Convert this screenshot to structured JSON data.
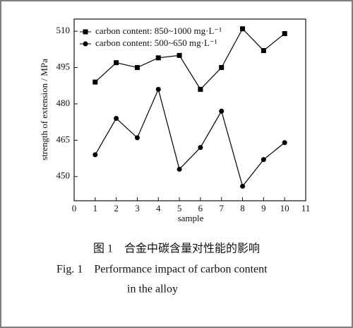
{
  "chart_data": {
    "type": "line",
    "x": [
      1,
      2,
      3,
      4,
      5,
      6,
      7,
      8,
      9,
      10
    ],
    "series": [
      {
        "name": "carbon content: 850~1000 mg·L⁻¹",
        "color": "#000000",
        "marker": "square",
        "values": [
          489,
          497,
          495,
          499,
          500,
          486,
          495,
          511,
          502,
          509
        ]
      },
      {
        "name": "carbon content: 500~650 mg·L⁻¹",
        "color": "#000000",
        "marker": "circle",
        "values": [
          459,
          474,
          466,
          486,
          453,
          462,
          477,
          446,
          457,
          464
        ]
      }
    ],
    "xlim": [
      0,
      11
    ],
    "xticks": [
      0,
      1,
      2,
      3,
      4,
      5,
      6,
      7,
      8,
      9,
      10,
      11
    ],
    "ylim": [
      440,
      515
    ],
    "yticks": [
      450,
      465,
      480,
      495,
      510
    ],
    "xlabel": "sample",
    "ylabel": "strength of extension / MPa",
    "legend": "upper left",
    "caption_cn": "图 1　合金中碳含量对性能的影响",
    "caption_en": [
      "Fig. 1　Performance impact of carbon content",
      "in the alloy"
    ]
  }
}
